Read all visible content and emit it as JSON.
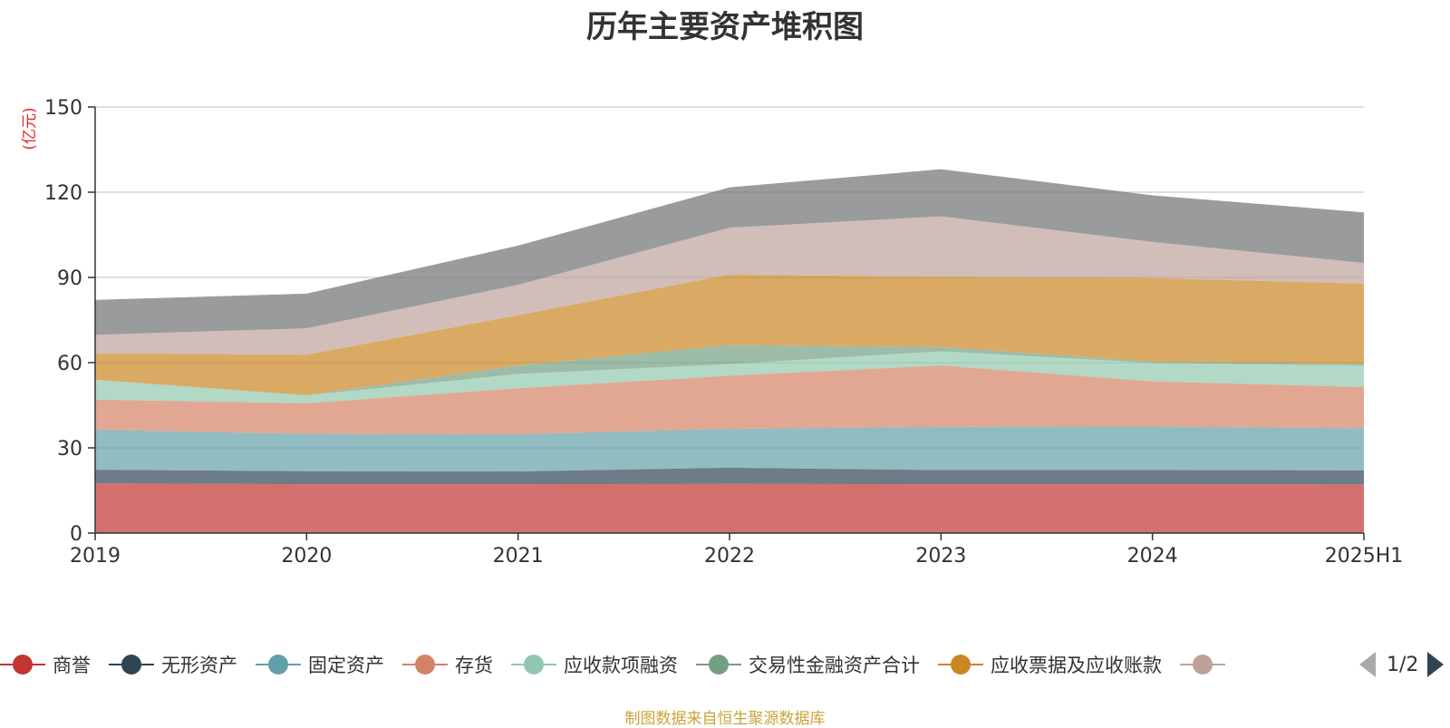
{
  "chart_data": {
    "type": "area",
    "title": "历年主要资产堆积图",
    "ylabel": "(亿元)",
    "xlabel": "",
    "ylim": [
      0,
      150
    ],
    "yticks": [
      0,
      30,
      60,
      90,
      120,
      150
    ],
    "categories": [
      "2019",
      "2020",
      "2021",
      "2022",
      "2023",
      "2024",
      "2025H1"
    ],
    "stacked": true,
    "grid": true,
    "legend_position": "bottom",
    "series": [
      {
        "name": "商誉",
        "color": "#c23531",
        "values": [
          17.5,
          17.2,
          17.2,
          17.3,
          17.2,
          17.2,
          17.1
        ]
      },
      {
        "name": "无形资产",
        "color": "#2f4554",
        "values": [
          4.8,
          4.6,
          4.5,
          5.7,
          5.0,
          5.0,
          5.0
        ]
      },
      {
        "name": "固定资产",
        "color": "#61a0a8",
        "values": [
          14.1,
          13.1,
          13.1,
          13.7,
          15.2,
          15.3,
          14.8
        ]
      },
      {
        "name": "存货",
        "color": "#d48265",
        "values": [
          10.6,
          10.8,
          16.2,
          18.7,
          21.6,
          15.9,
          14.5
        ]
      },
      {
        "name": "应收款项融资",
        "color": "#91c7ae",
        "values": [
          7.0,
          2.8,
          5.0,
          4.1,
          5.0,
          6.5,
          7.6
        ]
      },
      {
        "name": "交易性金融资产合计",
        "color": "#749f83",
        "values": [
          0.0,
          0.0,
          3.0,
          6.7,
          1.5,
          0.5,
          0.5
        ]
      },
      {
        "name": "应收票据及应收账款",
        "color": "#ca8622",
        "values": [
          9.3,
          14.3,
          17.7,
          24.8,
          24.7,
          29.4,
          28.3
        ]
      },
      {
        "name": "",
        "color": "#bda29a",
        "values": [
          6.5,
          9.3,
          10.7,
          16.5,
          21.3,
          12.7,
          7.3
        ]
      },
      {
        "name": "",
        "color": "#6e7074",
        "values": [
          12.3,
          12.2,
          13.8,
          14.2,
          16.6,
          16.4,
          17.8
        ]
      }
    ]
  },
  "legend": {
    "visible_count": 8,
    "page": "1/2"
  },
  "footer": {
    "source": "制图数据来自恒生聚源数据库"
  }
}
